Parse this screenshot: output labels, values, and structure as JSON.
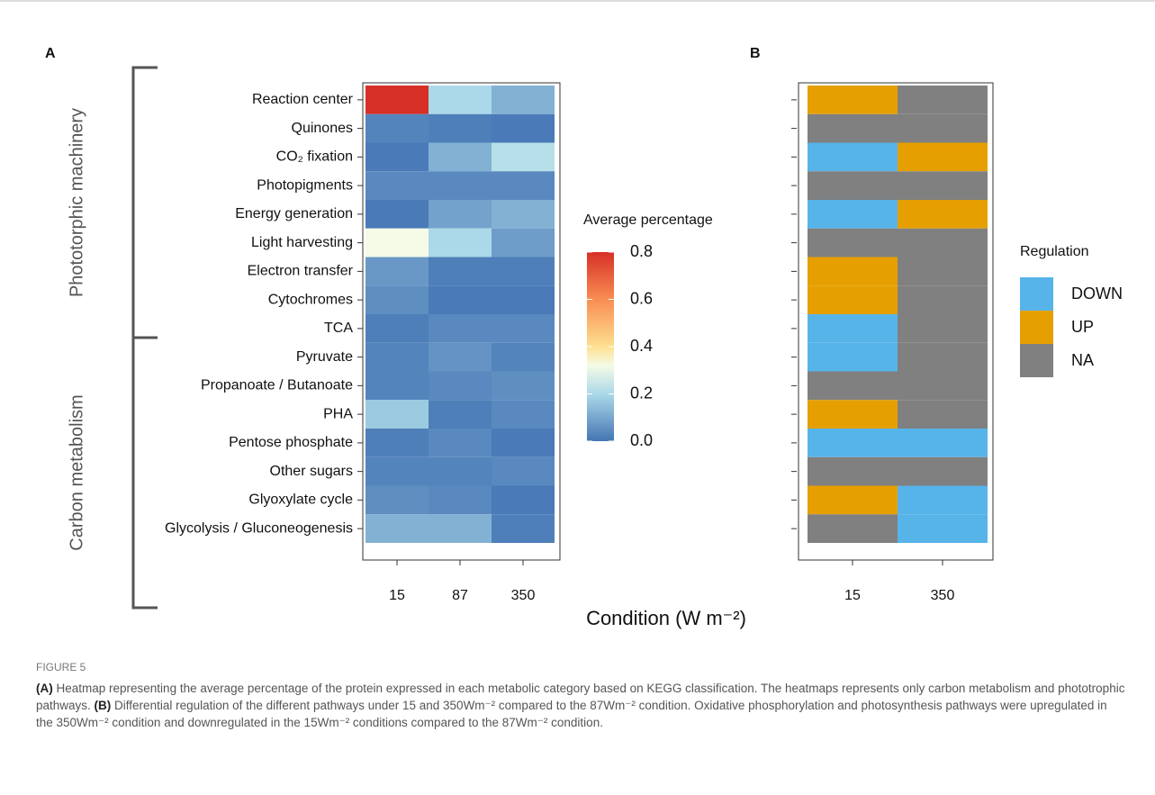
{
  "chart_data": [
    {
      "type": "heatmap",
      "panel": "A",
      "groups": [
        "Phototorphic machinery",
        "Carbon metabolism"
      ],
      "categories": [
        "Reaction center",
        "Quinones",
        "CO₂ fixation",
        "Photopigments",
        "Energy generation",
        "Light harvesting",
        "Electron transfer",
        "Cytochromes",
        "TCA",
        "Pyruvate",
        "Propanoate / Butanoate",
        "PHA",
        "Pentose phosphate",
        "Other sugars",
        "Glyoxylate cycle",
        "Glycolysis / Gluconeogenesis"
      ],
      "x": [
        "15",
        "87",
        "350"
      ],
      "values": [
        [
          0.8,
          0.2,
          0.12
        ],
        [
          0.03,
          0.02,
          0.01
        ],
        [
          0.01,
          0.12,
          0.22
        ],
        [
          0.04,
          0.04,
          0.04
        ],
        [
          0.01,
          0.09,
          0.12
        ],
        [
          0.32,
          0.2,
          0.08
        ],
        [
          0.07,
          0.02,
          0.02
        ],
        [
          0.05,
          0.01,
          0.01
        ],
        [
          0.02,
          0.04,
          0.04
        ],
        [
          0.03,
          0.06,
          0.03
        ],
        [
          0.03,
          0.04,
          0.05
        ],
        [
          0.17,
          0.02,
          0.04
        ],
        [
          0.02,
          0.04,
          0.01
        ],
        [
          0.03,
          0.03,
          0.04
        ],
        [
          0.05,
          0.04,
          0.01
        ],
        [
          0.12,
          0.12,
          0.02
        ]
      ],
      "legend_title": "Average percentage",
      "clim": [
        0,
        0.8
      ],
      "cticks": [
        {
          "value": 0,
          "label": "0.0"
        },
        0.2,
        0.4,
        0.6,
        0.8
      ],
      "colorscale": [
        [
          0,
          "#4575b4"
        ],
        [
          0.25,
          "#abd9e9"
        ],
        [
          0.4,
          "#f5fbe6"
        ],
        [
          0.5,
          "#fee090"
        ],
        [
          0.75,
          "#f98d52"
        ],
        [
          1,
          "#d73027"
        ]
      ]
    },
    {
      "type": "categorical-heatmap",
      "panel": "B",
      "x": [
        "15",
        "350"
      ],
      "values": [
        [
          "UP",
          "NA"
        ],
        [
          "NA",
          "NA"
        ],
        [
          "DOWN",
          "UP"
        ],
        [
          "NA",
          "NA"
        ],
        [
          "DOWN",
          "UP"
        ],
        [
          "NA",
          "NA"
        ],
        [
          "UP",
          "NA"
        ],
        [
          "UP",
          "NA"
        ],
        [
          "DOWN",
          "NA"
        ],
        [
          "DOWN",
          "NA"
        ],
        [
          "NA",
          "NA"
        ],
        [
          "UP",
          "NA"
        ],
        [
          "DOWN",
          "DOWN"
        ],
        [
          "NA",
          "NA"
        ],
        [
          "UP",
          "DOWN"
        ],
        [
          "NA",
          "DOWN"
        ]
      ],
      "legend_title": "Regulation",
      "levels": [
        {
          "name": "DOWN",
          "color": "#56b4e9"
        },
        {
          "name": "UP",
          "color": "#e69f00"
        },
        {
          "name": "NA",
          "color": "#808080"
        }
      ]
    }
  ],
  "figure": {
    "xlabel": "Condition (W m⁻²)",
    "caption": {
      "label": "FIGURE 5",
      "a_label": "(A)",
      "a_text": " Heatmap representing the average percentage of the protein expressed in each metabolic category based on KEGG classification. The heatmaps represents only carbon metabolism and phototrophic pathways. ",
      "b_label": "(B)",
      "b_text": " Differential regulation of the different pathways under 15 and 350Wm⁻² compared to the 87Wm⁻² condition. Oxidative phosphorylation and photosynthesis pathways were upregulated in the 350Wm⁻² condition and downregulated in the 15Wm⁻² conditions compared to the 87Wm⁻² condition."
    }
  }
}
